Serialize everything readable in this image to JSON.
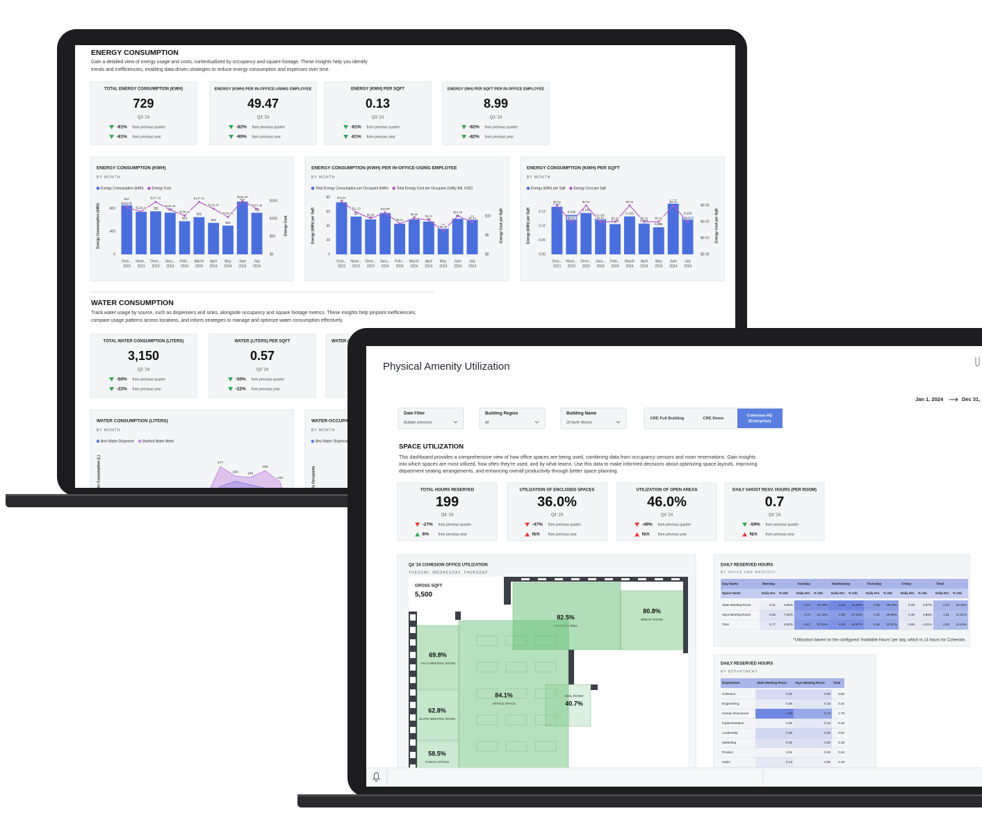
{
  "back_screen": {
    "energy": {
      "title": "ENERGY CONSUMPTION",
      "description": [
        "Gain a detailed view of energy usage and costs, contextualized by occupancy and square footage. These insights help you identify",
        "trends and inefficiencies, enabling data-driven strategies to reduce energy consumption and expenses over time."
      ],
      "kpis": [
        {
          "label": "TOTAL ENERGY CONSUMPTION (KWH)",
          "value": "729",
          "period": "Q3 '24",
          "changes": [
            {
              "value": "-81%",
              "text": "from previous quarter",
              "direction": "down",
              "color": "#34a853"
            },
            {
              "value": "-81%",
              "text": "from previous year",
              "direction": "down",
              "color": "#34a853"
            }
          ]
        },
        {
          "label": "ENERGY (KWH) PER IN-OFFICE-USING EMPLOYEE",
          "value": "49.47",
          "period": "Q3 '24",
          "changes": [
            {
              "value": "-82%",
              "text": "from previous quarter",
              "direction": "down",
              "color": "#34a853"
            },
            {
              "value": "-90%",
              "text": "from previous year",
              "direction": "down",
              "color": "#34a853"
            }
          ]
        },
        {
          "label": "ENERGY (KWH) PER SQFT",
          "value": "0.13",
          "period": "Q3 '24",
          "changes": [
            {
              "value": "-81%",
              "text": "from previous quarter",
              "direction": "down",
              "color": "#34a853"
            },
            {
              "value": "-81%",
              "text": "from previous year",
              "direction": "down",
              "color": "#34a853"
            }
          ]
        },
        {
          "label": "ENERGY (WH) PER SQFT PER IN-OFFICE EMPLOYEE",
          "value": "8.99",
          "period": "Q3 '24",
          "changes": [
            {
              "value": "-82%",
              "text": "from previous quarter",
              "direction": "down",
              "color": "#34a853"
            },
            {
              "value": "-82%",
              "text": "from previous year",
              "direction": "down",
              "color": "#34a853"
            }
          ]
        }
      ],
      "charts": [
        {
          "type": "bar",
          "title": "ENERGY CONSUMPTION (KWH)",
          "subtitle": "BY MONTH",
          "y_label": "Energy Consumption (kWh)",
          "y2_label": "Energy Cost",
          "categories": [
            [
              "Octo...",
              "2023"
            ],
            [
              "Nove...",
              "2023"
            ],
            [
              "Dece...",
              "2023"
            ],
            [
              "Janu...",
              "2024"
            ],
            [
              "Febr...",
              "2024"
            ],
            [
              "March",
              "2024"
            ],
            [
              "April",
              "2024"
            ],
            [
              "May",
              "2024"
            ],
            [
              "June",
              "2024"
            ],
            [
              "July",
              "2024"
            ]
          ],
          "series": [
            {
              "name": "Energy Consumption (kWh)",
              "color": "#4a6fdc",
              "values": [
                917,
                747,
                755,
                731,
                581,
                652,
                552,
                504,
                926,
                729
              ]
            },
            {
              "name": "Energy Cost",
              "color": "#b45cc8",
              "axis": "y2",
              "values": [
                131.51,
                120.1,
                147.25,
                125.4,
                108.42,
                147.03,
                128.2,
                104.56,
                150.2,
                127.46
              ],
              "value_labels": [
                "$131.51",
                "$120.10",
                "$147.25",
                "$125.40",
                "$108.42",
                "$147.03",
                "$128.20",
                "$104.56",
                "$150.20",
                "$127.46"
              ]
            }
          ],
          "ylim": [
            0,
            1000
          ],
          "yticks": [
            0,
            400,
            800
          ],
          "y2lim": [
            0,
            160
          ],
          "y2ticks": [
            {
              "value": 0,
              "label": "$0"
            },
            {
              "value": 50,
              "label": "$50"
            },
            {
              "value": 100,
              "label": "$100"
            },
            {
              "value": 150,
              "label": "$150"
            }
          ]
        },
        {
          "type": "bar",
          "title": "ENERGY CONSUMPTION (KWH) PER IN-OFFICE-USING EMPLOYEE",
          "subtitle": "BY MONTH",
          "y_label": "Energy (kWh) per Sqft",
          "y2_label": "Energy Cost per Sqft",
          "categories": [
            [
              "Octo...",
              "2023"
            ],
            [
              "Nove...",
              "2023"
            ],
            [
              "Dece...",
              "2023"
            ],
            [
              "Janu...",
              "2024"
            ],
            [
              "Febr...",
              "2024"
            ],
            [
              "March",
              "2024"
            ],
            [
              "April",
              "2024"
            ],
            [
              "May",
              "2024"
            ],
            [
              "June",
              "2024"
            ],
            [
              "July",
              "2024"
            ]
          ],
          "series": [
            {
              "name": "Total Energy Consumption per Occupant (kWh)",
              "color": "#4a6fdc",
              "values": [
                73,
                53,
                49,
                58,
                43,
                49,
                46,
                37,
                50,
                49
              ]
            },
            {
              "name": "Total Energy Cost per Occupant (Utility Bill, USD)",
              "color": "#b45cc8",
              "axis": "y2",
              "values": [
                13.94,
                11.1,
                9.48,
                10.98,
                8.1,
                9.5,
                9.04,
                6.2,
                10.09,
                8.54
              ],
              "value_labels": [
                "$13.94",
                "$11.10",
                "$9.48",
                "$10.98",
                "$8.10",
                "$9.50",
                "$9.04",
                "$6.20",
                "$10.09",
                "$8.54"
              ]
            }
          ],
          "ylim": [
            0,
            80
          ],
          "yticks": [
            0,
            20,
            40,
            60,
            80
          ],
          "y2lim": [
            0,
            15
          ],
          "y2ticks": [
            {
              "value": 0,
              "label": "$0"
            },
            {
              "value": 5,
              "label": "$5"
            },
            {
              "value": 10,
              "label": "$10"
            }
          ]
        },
        {
          "type": "bar",
          "title": "ENERGY CONSUMPTION (KWH) PER SQFT",
          "subtitle": "BY MONTH",
          "y_label": "Energy (kWh) per Sqft",
          "y2_label": "Energy Cost per Sqft",
          "categories": [
            [
              "Octo...",
              "2023"
            ],
            [
              "Nove...",
              "2023"
            ],
            [
              "Dece...",
              "2023"
            ],
            [
              "Janu...",
              "2024"
            ],
            [
              "Febr...",
              "2024"
            ],
            [
              "March",
              "2024"
            ],
            [
              "April",
              "2024"
            ],
            [
              "May",
              "2024"
            ],
            [
              "June",
              "2024"
            ],
            [
              "July",
              "2024"
            ]
          ],
          "series": [
            {
              "name": "Energy (kWh) per Sqft",
              "color": "#4a6fdc",
              "values": [
                0.167,
                0.138,
                0.145,
                0.126,
                0.106,
                0.133,
                0.108,
                0.095,
                0.178,
                0.133
              ]
            },
            {
              "name": "Energy Cost per Sqft",
              "color": "#b45cc8",
              "axis": "y2",
              "values": [
                0.03,
                0.02,
                0.03,
                0.02,
                0.02,
                0.03,
                0.02,
                0.02,
                0.03,
                0.02
              ],
              "value_labels": [
                "$0.03",
                "$0.02",
                "$0.03",
                "$0.02",
                "$0.02",
                "$0.03",
                "$0.02",
                "$0.02",
                "$0.03",
                "$0.02"
              ]
            }
          ],
          "ylim": [
            0,
            0.2
          ],
          "yticks": [
            {
              "value": 0,
              "label": "0.00"
            },
            0.05,
            {
              "value": 0.1,
              "label": "0.10"
            },
            0.15
          ],
          "y2lim": [
            0,
            0.035
          ],
          "y2ticks": [
            {
              "value": 0,
              "label": "$0.00"
            },
            {
              "value": 0.01,
              "label": "$0.01"
            },
            {
              "value": 0.02,
              "label": "$0.02"
            },
            {
              "value": 0.03,
              "label": "$0.03"
            }
          ]
        }
      ]
    },
    "water": {
      "title": "WATER CONSUMPTION",
      "description": [
        "Track water usage by source, such as dispensers and sinks, alongside occupancy and square footage metrics. These insights help pinpoint inefficiencies,",
        "compare usage patterns across locations, and inform strategies to manage and optimize water consumption effectively."
      ],
      "kpis": [
        {
          "label": "TOTAL WATER CONSUMPTION (LITERS)",
          "value": "3,150",
          "period": "Q3 '24",
          "changes": [
            {
              "value": "-50%",
              "text": "from previous quarter",
              "direction": "down",
              "color": "#34a853"
            },
            {
              "value": "-22%",
              "text": "from previous year",
              "direction": "down",
              "color": "#34a853"
            }
          ]
        },
        {
          "label": "WATER (LITERS) PER SQFT",
          "value": "0.57",
          "period": "Q3 '24",
          "changes": [
            {
              "value": "-50%",
              "text": "from previous quarter",
              "direction": "down",
              "color": "#34a853"
            },
            {
              "value": "-22%",
              "text": "from previous year",
              "direction": "down",
              "color": "#34a853"
            }
          ]
        },
        {
          "label": "WATER (L"
        }
      ],
      "charts": [
        {
          "type": "area",
          "title": "WATER CONSUMPTION (LITERS)",
          "subtitle": "BY MONTH",
          "y_label": "Water Consumption (L)",
          "series": [
            {
              "name": "Bevi Water Dispenser",
              "color": "#5b7fe0",
              "values": [
                120,
                135,
                125,
                115,
                105
              ]
            },
            {
              "name": "Bluebot Water Meter",
              "color": "#c48ae0",
              "values": [
                177,
                150,
                146,
                165,
                133
              ],
              "data_labels": true
            }
          ],
          "ylim": [
            0,
            200
          ]
        },
        {
          "title": "WATER-OCCUPA",
          "subtitle": "BY MONTH",
          "legend": [
            {
              "name": "Bevi Water Dispenser",
              "color": "#5b7fe0"
            }
          ],
          "y_label": "Daily Occupants"
        }
      ]
    }
  },
  "front_screen": {
    "title": "Physical Amenity Utilization",
    "date_range": {
      "start": "Jan 1, 2024",
      "end": "Dec 31,"
    },
    "filters": [
      {
        "label": "Date Filter",
        "value": "Multiple selections"
      },
      {
        "label": "Building Region",
        "value": "All"
      },
      {
        "label": "Building Name",
        "value": "20 North Wacker"
      }
    ],
    "buildings": [
      [
        "CRE Full Building"
      ],
      [
        "CRE Demo"
      ],
      [
        "Cohesion HQ",
        "(Enterprise)"
      ]
    ],
    "selected_building": 2,
    "space_utilization": {
      "title": "SPACE UTILIZATION",
      "description": [
        "This dashboard provides a comprehensive view of how office spaces are being used, combining data from occupancy sensors and room reservations. Gain insights",
        "into which spaces are most utilized, how often they're used, and by what teams. Use this data to make informed decisions about optimizing space layouts, improving",
        "department seating arrangements, and enhancing overall productivity through better space planning."
      ],
      "kpis": [
        {
          "label": "TOTAL HOURS RESERVED",
          "value": "199",
          "period": "Q4 '24",
          "changes": [
            {
              "value": "-27%",
              "text": "from previous quarter",
              "direction": "down",
              "color": "#e53935"
            },
            {
              "value": "6%",
              "text": "from previous year",
              "direction": "up",
              "color": "#34a853"
            }
          ]
        },
        {
          "label": "UTILIZATION OF ENCLOSED SPACES",
          "value": "36.0%",
          "period": "Q4 '24",
          "changes": [
            {
              "value": "-47%",
              "text": "from previous quarter",
              "direction": "down",
              "color": "#e53935"
            },
            {
              "value": "N/A",
              "text": "from previous year",
              "direction": "up",
              "color": "#e53935"
            }
          ]
        },
        {
          "label": "UTILIZATION OF OPEN AREAS",
          "value": "46.0%",
          "period": "Q4 '24",
          "changes": [
            {
              "value": "-49%",
              "text": "from previous quarter",
              "direction": "down",
              "color": "#e53935"
            },
            {
              "value": "N/A",
              "text": "from previous year",
              "direction": "up",
              "color": "#e53935"
            }
          ]
        },
        {
          "label": "DAILY GHOST RESV. HOURS (PER ROOM)",
          "value": "0.7",
          "period": "Q4 '24",
          "changes": [
            {
              "value": "-59%",
              "text": "from previous quarter",
              "direction": "down",
              "color": "#34a853"
            },
            {
              "value": "N/A",
              "text": "from previous year",
              "direction": "up",
              "color": "#e53935"
            }
          ]
        }
      ]
    },
    "floor_plan": {
      "title": "Q4 '24 COHESION OFFICE UTILIZATION",
      "subtitle": "TUESDAY, WEDNESDAY, THURSDAY",
      "gross_sqft_label": "GROSS SQFT",
      "gross_sqft": "5,500",
      "rooms": [
        {
          "name": "COMMON AREA",
          "utilization": "82.5%"
        },
        {
          "name": "BREAK ROOM",
          "utilization": "80.8%"
        },
        {
          "name": "OFFICE SPACE",
          "utilization": "84.1%"
        },
        {
          "name": "MAIL ROOM",
          "utilization": "40.7%"
        },
        {
          "name": "VAYU MEETING ROOM",
          "utilization": "69.8%"
        },
        {
          "name": "SLATE MEETING ROOM",
          "utilization": "62.8%"
        },
        {
          "name": "THRU'S OFFICE",
          "utilization": "58.5%"
        }
      ]
    },
    "reserved_hours_by_space": {
      "title": "DAILY RESERVED HOURS",
      "subtitle": "BY SPACE AND WEEKDAY",
      "columns": [
        "Day Name",
        "Monday",
        "Tuesday",
        "Wednesday",
        "Thursday",
        "Friday",
        "Total"
      ],
      "subcolumns": [
        "Space Name",
        "Daily Hrs",
        "% Util.",
        "Daily Hrs",
        "% Util.",
        "Daily Hrs",
        "% Util.",
        "Daily Hrs",
        "% Util.",
        "Daily Hrs",
        "% Util.",
        "Daily Hrs",
        "% Util."
      ],
      "rows": [
        [
          "Slate Meeting Room",
          "0.21",
          "2.65%",
          "3.24",
          "40.49%",
          "3.59",
          "44.88%",
          "2.86",
          "35.76%",
          "0.29",
          "3.67%",
          "2.04",
          "25.46%"
        ],
        [
          "Vayu Meeting Room",
          "0.56",
          "7.02%",
          "2.73",
          "34.16%",
          "2.96",
          "37.04%",
          "2.40",
          "29.99%",
          "0.40",
          "4.96%",
          "1.81",
          "22.61%"
        ],
        [
          "Total",
          "0.77",
          "4.83%",
          "5.97",
          "37.32%",
          "6.55",
          "40.97%",
          "5.26",
          "32.87%",
          "0.69",
          "4.31%",
          "3.85",
          "24.04%"
        ]
      ],
      "footnote": "*Utilization based on the configured 'Available Hours' per day, which is 14 hours for Cohesion."
    },
    "reserved_hours_by_department": {
      "title": "DAILY RESERVED HOURS",
      "subtitle": "BY DEPARTMENT",
      "columns": [
        "Department",
        "Slate Meeting Room",
        "Vayu Meeting Room",
        "Total"
      ],
      "rows": [
        [
          "Cohesion",
          "0.25",
          "0.25",
          "0.50"
        ],
        [
          "Engineering",
          "0.08",
          "0.15",
          "0.22"
        ],
        [
          "Human Resources",
          "1.06",
          "0.73",
          "1.79"
        ],
        [
          "Implementation",
          "0.05",
          "0.13",
          "0.18"
        ],
        [
          "Leadership",
          "0.28",
          "0.26",
          "0.54"
        ],
        [
          "Marketing",
          "0.18",
          "0.20",
          "0.38"
        ],
        [
          "Product",
          "0.01",
          "0.03",
          "0.04"
        ],
        [
          "Sales",
          "0.13",
          "0.05",
          "0.19"
        ]
      ]
    }
  }
}
